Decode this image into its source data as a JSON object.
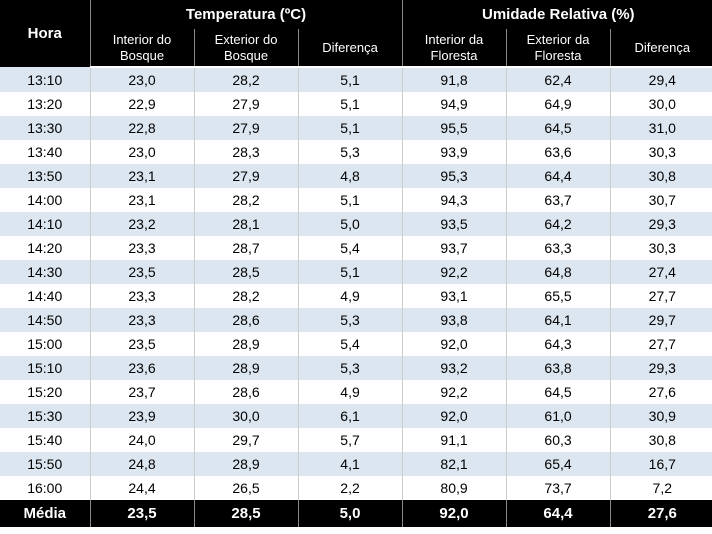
{
  "header": {
    "hora": "Hora",
    "temp_group": "Temperatura (ºC)",
    "hum_group": "Umidade Relativa (%)",
    "temp_cols": [
      "Interior do Bosque",
      "Exterior do Bosque",
      "Diferença"
    ],
    "hum_cols": [
      "Interior da Floresta",
      "Exterior da Floresta",
      "Diferença"
    ]
  },
  "rows": [
    {
      "hora": "13:10",
      "ti": "23,0",
      "te": "28,2",
      "td": "5,1",
      "hi": "91,8",
      "he": "62,4",
      "hd": "29,4"
    },
    {
      "hora": "13:20",
      "ti": "22,9",
      "te": "27,9",
      "td": "5,1",
      "hi": "94,9",
      "he": "64,9",
      "hd": "30,0"
    },
    {
      "hora": "13:30",
      "ti": "22,8",
      "te": "27,9",
      "td": "5,1",
      "hi": "95,5",
      "he": "64,5",
      "hd": "31,0"
    },
    {
      "hora": "13:40",
      "ti": "23,0",
      "te": "28,3",
      "td": "5,3",
      "hi": "93,9",
      "he": "63,6",
      "hd": "30,3"
    },
    {
      "hora": "13:50",
      "ti": "23,1",
      "te": "27,9",
      "td": "4,8",
      "hi": "95,3",
      "he": "64,4",
      "hd": "30,8"
    },
    {
      "hora": "14:00",
      "ti": "23,1",
      "te": "28,2",
      "td": "5,1",
      "hi": "94,3",
      "he": "63,7",
      "hd": "30,7"
    },
    {
      "hora": "14:10",
      "ti": "23,2",
      "te": "28,1",
      "td": "5,0",
      "hi": "93,5",
      "he": "64,2",
      "hd": "29,3"
    },
    {
      "hora": "14:20",
      "ti": "23,3",
      "te": "28,7",
      "td": "5,4",
      "hi": "93,7",
      "he": "63,3",
      "hd": "30,3"
    },
    {
      "hora": "14:30",
      "ti": "23,5",
      "te": "28,5",
      "td": "5,1",
      "hi": "92,2",
      "he": "64,8",
      "hd": "27,4"
    },
    {
      "hora": "14:40",
      "ti": "23,3",
      "te": "28,2",
      "td": "4,9",
      "hi": "93,1",
      "he": "65,5",
      "hd": "27,7"
    },
    {
      "hora": "14:50",
      "ti": "23,3",
      "te": "28,6",
      "td": "5,3",
      "hi": "93,8",
      "he": "64,1",
      "hd": "29,7"
    },
    {
      "hora": "15:00",
      "ti": "23,5",
      "te": "28,9",
      "td": "5,4",
      "hi": "92,0",
      "he": "64,3",
      "hd": "27,7"
    },
    {
      "hora": "15:10",
      "ti": "23,6",
      "te": "28,9",
      "td": "5,3",
      "hi": "93,2",
      "he": "63,8",
      "hd": "29,3"
    },
    {
      "hora": "15:20",
      "ti": "23,7",
      "te": "28,6",
      "td": "4,9",
      "hi": "92,2",
      "he": "64,5",
      "hd": "27,6"
    },
    {
      "hora": "15:30",
      "ti": "23,9",
      "te": "30,0",
      "td": "6,1",
      "hi": "92,0",
      "he": "61,0",
      "hd": "30,9"
    },
    {
      "hora": "15:40",
      "ti": "24,0",
      "te": "29,7",
      "td": "5,7",
      "hi": "91,1",
      "he": "60,3",
      "hd": "30,8"
    },
    {
      "hora": "15:50",
      "ti": "24,8",
      "te": "28,9",
      "td": "4,1",
      "hi": "82,1",
      "he": "65,4",
      "hd": "16,7"
    },
    {
      "hora": "16:00",
      "ti": "24,4",
      "te": "26,5",
      "td": "2,2",
      "hi": "80,9",
      "he": "73,7",
      "hd": "7,2"
    }
  ],
  "footer": {
    "label": "Média",
    "ti": "23,5",
    "te": "28,5",
    "td": "5,0",
    "hi": "92,0",
    "he": "64,4",
    "hd": "27,6"
  },
  "colors": {
    "header_bg": "#000000",
    "header_fg": "#ffffff",
    "row_even": "#dce6f1",
    "row_odd": "#ffffff",
    "border": "#cccccc"
  },
  "font": {
    "family": "Arial",
    "size_body": 14,
    "size_header": 15,
    "size_sub": 13
  }
}
